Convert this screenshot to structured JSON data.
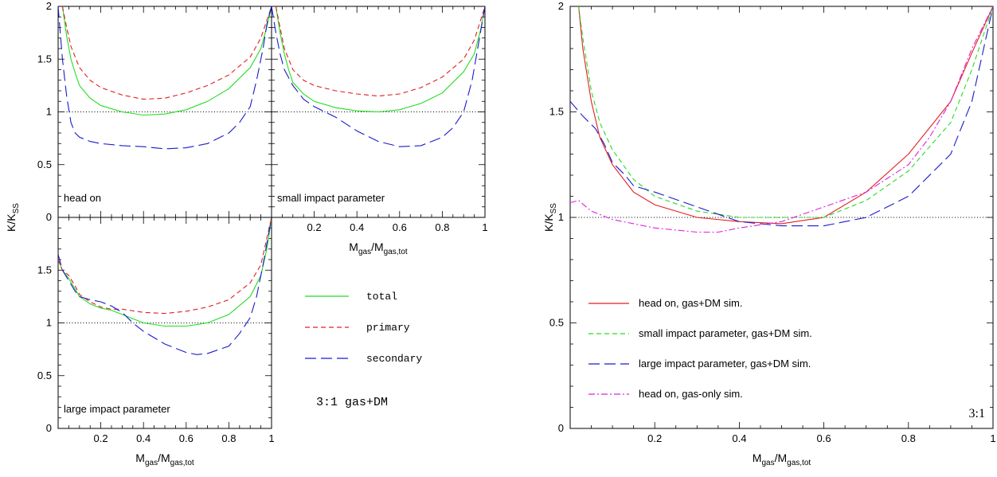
{
  "chart_data": {
    "type": "line",
    "figure_title": "",
    "styles": {
      "total": {
        "color": "#22dd22",
        "dash": ""
      },
      "primary": {
        "color": "#e02020",
        "dash": "6,4"
      },
      "secondary": {
        "color": "#1a1acc",
        "dash": "14,6"
      },
      "sim_head_on": {
        "color": "#e02020",
        "dash": ""
      },
      "sim_small": {
        "color": "#22dd22",
        "dash": "6,4"
      },
      "sim_large": {
        "color": "#1a1acc",
        "dash": "14,6"
      },
      "sim_gas_only": {
        "color": "#dd22dd",
        "dash": "8,3,2,3"
      }
    },
    "panels": [
      {
        "id": "head-on",
        "label": "head on",
        "xlim": [
          0,
          1
        ],
        "ylim": [
          0,
          2
        ],
        "ticks_x": [],
        "tick_labels_y": [
          "0",
          "0.5",
          "1",
          "1.5",
          "2"
        ],
        "ticks_y": [
          0,
          0.5,
          1,
          1.5,
          2
        ],
        "reference_y": 1,
        "series": [
          {
            "key": "total",
            "x": [
              0.02,
              0.04,
              0.06,
              0.08,
              0.1,
              0.15,
              0.2,
              0.3,
              0.4,
              0.5,
              0.6,
              0.7,
              0.8,
              0.9,
              0.95,
              0.98,
              1.0
            ],
            "y": [
              2.0,
              1.72,
              1.5,
              1.37,
              1.25,
              1.13,
              1.06,
              1.0,
              0.97,
              0.98,
              1.02,
              1.1,
              1.22,
              1.42,
              1.6,
              1.82,
              2.0
            ]
          },
          {
            "key": "primary",
            "x": [
              0.02,
              0.04,
              0.06,
              0.1,
              0.15,
              0.2,
              0.3,
              0.4,
              0.5,
              0.6,
              0.7,
              0.8,
              0.9,
              0.95,
              1.0
            ],
            "y": [
              2.0,
              1.8,
              1.62,
              1.42,
              1.3,
              1.23,
              1.16,
              1.12,
              1.13,
              1.18,
              1.25,
              1.35,
              1.52,
              1.7,
              2.0
            ]
          },
          {
            "key": "secondary",
            "x": [
              0.0,
              0.02,
              0.04,
              0.06,
              0.08,
              0.1,
              0.15,
              0.2,
              0.3,
              0.4,
              0.5,
              0.6,
              0.7,
              0.8,
              0.85,
              0.9,
              0.93,
              0.96,
              0.98,
              1.0
            ],
            "y": [
              2.0,
              1.5,
              1.15,
              0.9,
              0.8,
              0.76,
              0.72,
              0.7,
              0.68,
              0.67,
              0.65,
              0.66,
              0.7,
              0.8,
              0.9,
              1.05,
              1.3,
              1.6,
              1.85,
              2.0
            ]
          }
        ]
      },
      {
        "id": "small-impact",
        "label": "small impact parameter",
        "xlim": [
          0,
          1
        ],
        "ylim": [
          0,
          2
        ],
        "ticks_x": [
          0.2,
          0.4,
          0.6,
          0.8,
          1
        ],
        "tick_labels_x": [
          "0.2",
          "0.4",
          "0.6",
          "0.8",
          "1"
        ],
        "ticks_y": [],
        "tick_labels_y": [],
        "xlabel_main": "M",
        "xlabel_sub": "gas",
        "xlabel_main2": "/M",
        "xlabel_sub2": "gas,tot",
        "reference_y": 1,
        "series": [
          {
            "key": "total",
            "x": [
              0.02,
              0.04,
              0.06,
              0.08,
              0.1,
              0.15,
              0.2,
              0.3,
              0.4,
              0.5,
              0.6,
              0.7,
              0.8,
              0.9,
              0.95,
              0.98,
              1.0
            ],
            "y": [
              2.0,
              1.75,
              1.55,
              1.4,
              1.28,
              1.17,
              1.1,
              1.04,
              1.01,
              1.0,
              1.02,
              1.08,
              1.18,
              1.38,
              1.55,
              1.78,
              2.0
            ]
          },
          {
            "key": "primary",
            "x": [
              0.02,
              0.04,
              0.06,
              0.1,
              0.15,
              0.2,
              0.3,
              0.4,
              0.5,
              0.6,
              0.7,
              0.8,
              0.9,
              0.95,
              1.0
            ],
            "y": [
              2.0,
              1.8,
              1.6,
              1.4,
              1.3,
              1.25,
              1.2,
              1.17,
              1.15,
              1.17,
              1.23,
              1.33,
              1.5,
              1.68,
              2.0
            ]
          },
          {
            "key": "secondary",
            "x": [
              0.0,
              0.02,
              0.04,
              0.06,
              0.1,
              0.15,
              0.2,
              0.3,
              0.4,
              0.5,
              0.6,
              0.7,
              0.8,
              0.85,
              0.9,
              0.94,
              0.97,
              1.0
            ],
            "y": [
              2.0,
              1.75,
              1.55,
              1.4,
              1.25,
              1.12,
              1.05,
              0.95,
              0.82,
              0.72,
              0.67,
              0.68,
              0.76,
              0.85,
              1.0,
              1.3,
              1.65,
              2.0
            ]
          }
        ]
      },
      {
        "id": "large-impact",
        "label": "large impact parameter",
        "xlim": [
          0,
          1
        ],
        "ylim": [
          0,
          2
        ],
        "ticks_x": [
          0.2,
          0.4,
          0.6,
          0.8,
          1
        ],
        "tick_labels_x": [
          "0.2",
          "0.4",
          "0.6",
          "0.8",
          "1"
        ],
        "ticks_y": [
          0,
          0.5,
          1,
          1.5
        ],
        "tick_labels_y": [
          "0",
          "0.5",
          "1",
          "1.5"
        ],
        "xlabel_main": "M",
        "xlabel_sub": "gas",
        "xlabel_main2": "/M",
        "xlabel_sub2": "gas,tot",
        "reference_y": 1,
        "series": [
          {
            "key": "total",
            "x": [
              0.0,
              0.02,
              0.05,
              0.08,
              0.1,
              0.15,
              0.2,
              0.25,
              0.3,
              0.4,
              0.5,
              0.6,
              0.7,
              0.8,
              0.9,
              0.95,
              0.98,
              1.0
            ],
            "y": [
              1.6,
              1.5,
              1.42,
              1.32,
              1.25,
              1.18,
              1.14,
              1.12,
              1.08,
              1.0,
              0.97,
              0.97,
              1.0,
              1.08,
              1.25,
              1.45,
              1.72,
              2.0
            ]
          },
          {
            "key": "primary",
            "x": [
              0.0,
              0.02,
              0.05,
              0.08,
              0.1,
              0.15,
              0.2,
              0.25,
              0.3,
              0.4,
              0.5,
              0.6,
              0.7,
              0.8,
              0.9,
              0.95,
              1.0
            ],
            "y": [
              1.6,
              1.5,
              1.45,
              1.35,
              1.27,
              1.2,
              1.15,
              1.13,
              1.13,
              1.1,
              1.09,
              1.11,
              1.15,
              1.22,
              1.38,
              1.55,
              2.0
            ]
          },
          {
            "key": "secondary",
            "x": [
              0.0,
              0.02,
              0.05,
              0.08,
              0.1,
              0.15,
              0.2,
              0.25,
              0.3,
              0.35,
              0.4,
              0.5,
              0.6,
              0.65,
              0.7,
              0.8,
              0.85,
              0.9,
              0.93,
              0.96,
              1.0
            ],
            "y": [
              1.65,
              1.5,
              1.4,
              1.3,
              1.25,
              1.22,
              1.2,
              1.16,
              1.1,
              1.0,
              0.92,
              0.8,
              0.72,
              0.7,
              0.71,
              0.78,
              0.9,
              1.05,
              1.25,
              1.55,
              2.0
            ]
          }
        ]
      },
      {
        "id": "combined",
        "label": "3:1",
        "xlim": [
          0,
          1
        ],
        "ylim": [
          0,
          2
        ],
        "ticks_x": [
          0.2,
          0.4,
          0.6,
          0.8,
          1
        ],
        "tick_labels_x": [
          "0.2",
          "0.4",
          "0.6",
          "0.8",
          "1"
        ],
        "ticks_y": [
          0,
          0.5,
          1,
          1.5,
          2
        ],
        "tick_labels_y": [
          "0",
          "0.5",
          "1",
          "1.5",
          "2"
        ],
        "xlabel_main": "M",
        "xlabel_sub": "gas",
        "xlabel_main2": "/M",
        "xlabel_sub2": "gas,tot",
        "reference_y": 1,
        "series": [
          {
            "key": "sim_head_on",
            "name": "head on, gas+DM sim.",
            "x": [
              0.02,
              0.03,
              0.05,
              0.07,
              0.1,
              0.15,
              0.2,
              0.3,
              0.4,
              0.5,
              0.6,
              0.7,
              0.8,
              0.9,
              0.95,
              1.0
            ],
            "y": [
              2.0,
              1.8,
              1.55,
              1.38,
              1.25,
              1.12,
              1.06,
              1.0,
              0.98,
              0.97,
              1.0,
              1.12,
              1.3,
              1.55,
              1.78,
              2.0
            ]
          },
          {
            "key": "sim_small",
            "name": "small impact parameter, gas+DM sim.",
            "x": [
              0.02,
              0.03,
              0.05,
              0.07,
              0.1,
              0.15,
              0.2,
              0.3,
              0.4,
              0.5,
              0.6,
              0.7,
              0.8,
              0.9,
              0.95,
              1.0
            ],
            "y": [
              2.0,
              1.85,
              1.6,
              1.45,
              1.32,
              1.18,
              1.1,
              1.03,
              1.0,
              1.0,
              1.0,
              1.08,
              1.22,
              1.45,
              1.7,
              2.0
            ]
          },
          {
            "key": "sim_large",
            "name": "large impact parameter, gas+DM sim.",
            "x": [
              0.0,
              0.03,
              0.06,
              0.08,
              0.1,
              0.13,
              0.15,
              0.2,
              0.3,
              0.4,
              0.5,
              0.6,
              0.7,
              0.8,
              0.9,
              0.95,
              1.0
            ],
            "y": [
              1.55,
              1.48,
              1.42,
              1.35,
              1.26,
              1.2,
              1.15,
              1.12,
              1.05,
              0.98,
              0.96,
              0.96,
              1.0,
              1.1,
              1.3,
              1.55,
              2.0
            ]
          },
          {
            "key": "sim_gas_only",
            "name": "head on, gas-only sim.",
            "x": [
              0.0,
              0.02,
              0.05,
              0.1,
              0.2,
              0.3,
              0.35,
              0.4,
              0.5,
              0.6,
              0.7,
              0.8,
              0.85,
              0.9,
              0.95,
              1.0
            ],
            "y": [
              1.07,
              1.08,
              1.03,
              0.99,
              0.95,
              0.93,
              0.93,
              0.95,
              0.98,
              1.05,
              1.12,
              1.25,
              1.38,
              1.55,
              1.8,
              2.0
            ]
          }
        ]
      }
    ],
    "ylabel": {
      "main": "K/K",
      "sub": "SS"
    },
    "left_legend": [
      {
        "key": "total",
        "label": "total"
      },
      {
        "key": "primary",
        "label": "primary"
      },
      {
        "key": "secondary",
        "label": "secondary"
      }
    ],
    "left_caption": "3:1 gas+DM"
  }
}
